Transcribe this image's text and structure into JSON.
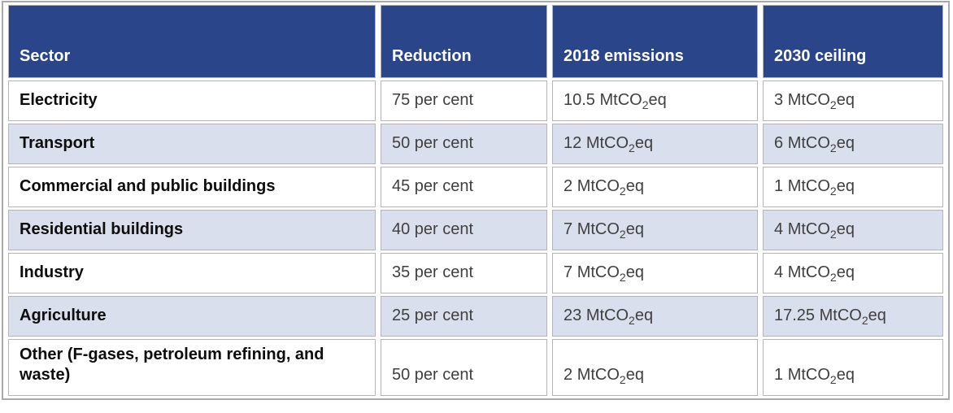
{
  "colors": {
    "header_bg": "#2a4589",
    "header_text": "#ffffff",
    "row_bg": "#ffffff",
    "row_alt_bg": "#d9dfed",
    "cell_border": "#b3b3b8",
    "outer_border": "#a8a8ad",
    "sector_text": "#0d0d0d",
    "value_text": "#3f3f3f"
  },
  "table": {
    "columns": [
      {
        "label": "Sector"
      },
      {
        "label": "Reduction"
      },
      {
        "label": "2018 emissions"
      },
      {
        "label": "2030 ceiling"
      }
    ],
    "unit": {
      "prefix": "MtCO",
      "subscript": "2",
      "suffix": "eq"
    },
    "rows": [
      {
        "sector": "Electricity",
        "reduction": "75 per cent",
        "emissions_2018": "10.5",
        "ceiling_2030": "3"
      },
      {
        "sector": "Transport",
        "reduction": "50 per cent",
        "emissions_2018": "12",
        "ceiling_2030": "6"
      },
      {
        "sector": "Commercial and public buildings",
        "reduction": "45 per cent",
        "emissions_2018": "2",
        "ceiling_2030": "1"
      },
      {
        "sector": "Residential buildings",
        "reduction": "40 per cent",
        "emissions_2018": "7",
        "ceiling_2030": "4"
      },
      {
        "sector": "Industry",
        "reduction": "35 per cent",
        "emissions_2018": "7",
        "ceiling_2030": "4"
      },
      {
        "sector": "Agriculture",
        "reduction": "25 per cent",
        "emissions_2018": "23",
        "ceiling_2030": "17.25"
      },
      {
        "sector": "Other (F-gases, petroleum refining, and waste)",
        "reduction": "50 per cent",
        "emissions_2018": "2",
        "ceiling_2030": "1"
      }
    ]
  }
}
